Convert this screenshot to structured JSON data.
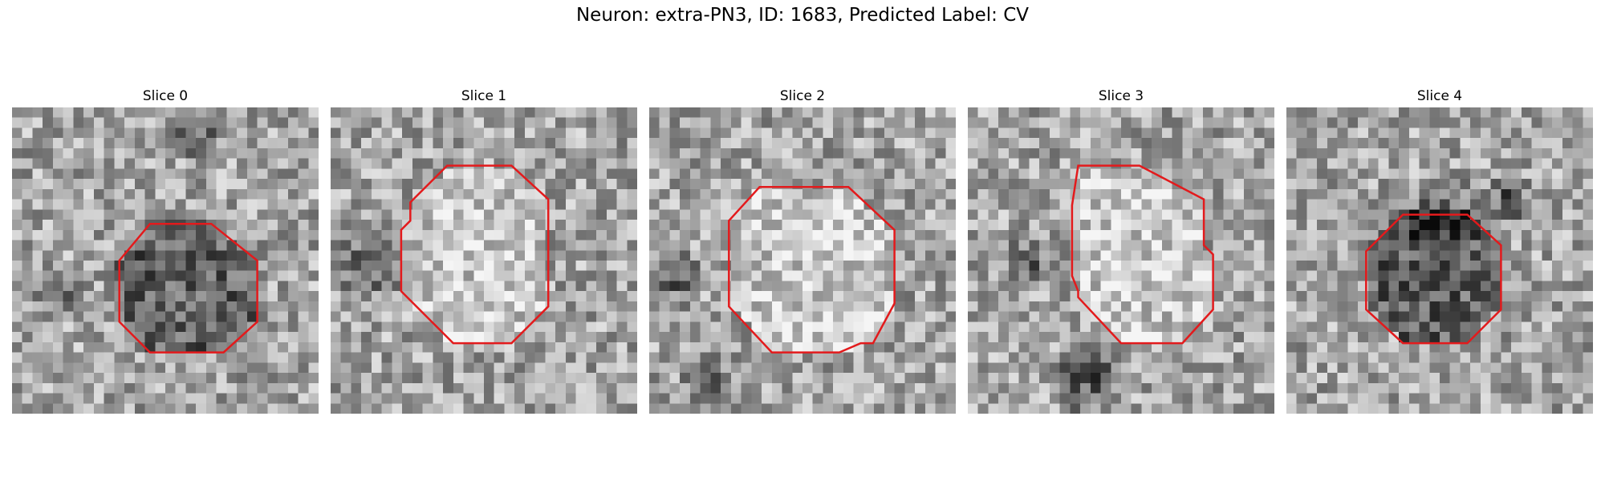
{
  "figure": {
    "title": "Neuron: extra-PN3, ID: 1683, Predicted Label: CV"
  },
  "slices": [
    {
      "label": "Slice 0",
      "seed": 11,
      "interior": "dark",
      "dark_blobs": [
        [
          0.15,
          0.6,
          0.12
        ],
        [
          0.6,
          0.1,
          0.1
        ]
      ],
      "contour": [
        [
          0.45,
          0.38
        ],
        [
          0.65,
          0.38
        ],
        [
          0.8,
          0.5
        ],
        [
          0.8,
          0.7
        ],
        [
          0.69,
          0.8
        ],
        [
          0.45,
          0.8
        ],
        [
          0.35,
          0.7
        ],
        [
          0.35,
          0.5
        ]
      ],
      "contour_color": "#e31a1c"
    },
    {
      "label": "Slice 1",
      "seed": 23,
      "interior": "light",
      "dark_blobs": [
        [
          0.12,
          0.52,
          0.14
        ]
      ],
      "contour": [
        [
          0.38,
          0.19
        ],
        [
          0.59,
          0.19
        ],
        [
          0.71,
          0.3
        ],
        [
          0.71,
          0.65
        ],
        [
          0.59,
          0.77
        ],
        [
          0.4,
          0.77
        ],
        [
          0.23,
          0.6
        ],
        [
          0.23,
          0.4
        ],
        [
          0.26,
          0.37
        ],
        [
          0.26,
          0.31
        ]
      ],
      "contour_color": "#e31a1c"
    },
    {
      "label": "Slice 2",
      "seed": 37,
      "interior": "light",
      "dark_blobs": [
        [
          0.08,
          0.55,
          0.12
        ],
        [
          0.2,
          0.9,
          0.1
        ]
      ],
      "contour": [
        [
          0.36,
          0.26
        ],
        [
          0.65,
          0.26
        ],
        [
          0.8,
          0.4
        ],
        [
          0.8,
          0.64
        ],
        [
          0.73,
          0.77
        ],
        [
          0.69,
          0.77
        ],
        [
          0.62,
          0.8
        ],
        [
          0.6,
          0.8
        ],
        [
          0.58,
          0.8
        ],
        [
          0.4,
          0.8
        ],
        [
          0.26,
          0.65
        ],
        [
          0.26,
          0.37
        ]
      ],
      "contour_color": "#e31a1c"
    },
    {
      "label": "Slice 3",
      "seed": 41,
      "interior": "light",
      "dark_blobs": [
        [
          0.4,
          0.88,
          0.16
        ],
        [
          0.2,
          0.5,
          0.1
        ]
      ],
      "contour": [
        [
          0.36,
          0.19
        ],
        [
          0.56,
          0.19
        ],
        [
          0.77,
          0.3
        ],
        [
          0.77,
          0.45
        ],
        [
          0.8,
          0.48
        ],
        [
          0.8,
          0.66
        ],
        [
          0.7,
          0.77
        ],
        [
          0.5,
          0.77
        ],
        [
          0.36,
          0.62
        ],
        [
          0.36,
          0.6
        ],
        [
          0.34,
          0.55
        ],
        [
          0.34,
          0.32
        ]
      ],
      "contour_color": "#e31a1c"
    },
    {
      "label": "Slice 4",
      "seed": 53,
      "interior": "dark",
      "dark_blobs": [
        [
          0.5,
          0.35,
          0.16
        ],
        [
          0.72,
          0.3,
          0.1
        ]
      ],
      "contour": [
        [
          0.38,
          0.35
        ],
        [
          0.59,
          0.35
        ],
        [
          0.7,
          0.45
        ],
        [
          0.7,
          0.66
        ],
        [
          0.59,
          0.77
        ],
        [
          0.38,
          0.77
        ],
        [
          0.26,
          0.66
        ],
        [
          0.26,
          0.47
        ]
      ],
      "contour_color": "#e31a1c"
    }
  ]
}
